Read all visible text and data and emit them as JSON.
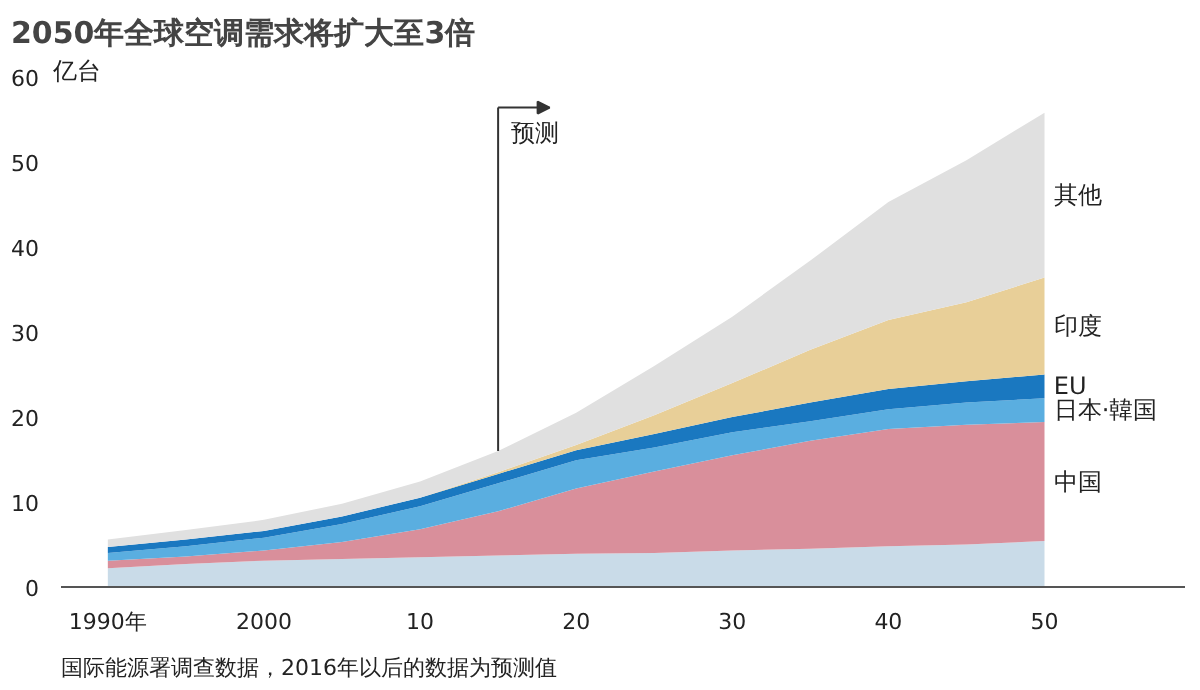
{
  "chart_data": {
    "type": "area",
    "stacked": true,
    "title": "2050年全球空调需求将扩大至3倍",
    "ylabel": "亿台",
    "x": [
      1990,
      1995,
      2000,
      2005,
      2010,
      2015,
      2020,
      2025,
      2030,
      2035,
      2040,
      2045,
      2050
    ],
    "series": [
      {
        "color": "#c9dbe8",
        "values": [
          2.2,
          2.7,
          3.1,
          3.3,
          3.5,
          3.7,
          3.9,
          4.0,
          4.3,
          4.5,
          4.8,
          5.0,
          5.4
        ]
      },
      {
        "name": "中国",
        "color": "#d98f9b",
        "values": [
          0.9,
          0.9,
          1.2,
          2.0,
          3.3,
          5.2,
          7.7,
          9.6,
          11.2,
          12.7,
          13.8,
          14.1,
          14.0
        ]
      },
      {
        "name": "日本·韓国",
        "color": "#5aaee0",
        "values": [
          0.9,
          1.2,
          1.5,
          2.1,
          2.7,
          3.3,
          3.3,
          2.8,
          2.7,
          2.3,
          2.3,
          2.6,
          2.8
        ]
      },
      {
        "name": "EU",
        "color": "#1a78c0",
        "values": [
          0.7,
          0.8,
          0.8,
          0.9,
          1.0,
          1.1,
          1.2,
          1.6,
          1.8,
          2.2,
          2.4,
          2.5,
          2.8
        ]
      },
      {
        "name": "印度",
        "color": "#e8cf98",
        "values": [
          0,
          0,
          0,
          0,
          0,
          0.2,
          0.6,
          2.2,
          4.0,
          6.2,
          8.1,
          9.3,
          11.4
        ]
      },
      {
        "name": "其他",
        "color": "#e0e0e0",
        "values": [
          0.9,
          1.1,
          1.3,
          1.5,
          1.9,
          2.5,
          3.8,
          5.8,
          7.8,
          10.5,
          13.9,
          16.7,
          19.4
        ]
      }
    ],
    "xlim": [
      1987,
      2059
    ],
    "ylim": [
      0,
      60
    ],
    "xticks": [
      {
        "value": 1990,
        "label": "1990年"
      },
      2000,
      {
        "value": 2010,
        "label": "10"
      },
      {
        "value": 2020,
        "label": "20"
      },
      {
        "value": 2030,
        "label": "30"
      },
      {
        "value": 2040,
        "label": "40"
      },
      {
        "value": 2050,
        "label": "50"
      }
    ],
    "yticks": [
      0,
      10,
      20,
      30,
      40,
      50,
      60
    ],
    "ref_lines": [
      {
        "axis": "x",
        "value": 2015,
        "label": "预测"
      }
    ],
    "annotations": [
      "国际能源署调查数据，2016年以后的数据为预测值"
    ]
  }
}
